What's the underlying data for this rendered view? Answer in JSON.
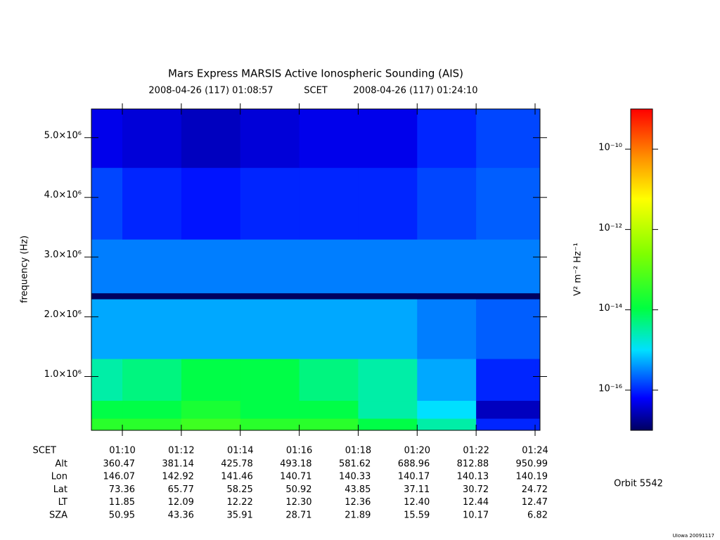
{
  "chart_data": {
    "type": "spectrogram",
    "title": "Mars Express MARSIS Active Ionospheric Sounding (AIS)",
    "xlabel": "SCET",
    "ylabel": "frequency (Hz)",
    "xlim": [
      "2008-04-26 (117) 01:08:57",
      "2008-04-26 (117) 01:24:10"
    ],
    "xticks": [
      "01:10",
      "01:12",
      "01:14",
      "01:16",
      "01:18",
      "01:20",
      "01:22",
      "01:24"
    ],
    "ylim": [
      100000,
      5480000
    ],
    "yticks": [
      {
        "value": 1000000,
        "label": "1.0×10⁶"
      },
      {
        "value": 2000000,
        "label": "2.0×10⁶"
      },
      {
        "value": 3000000,
        "label": "3.0×10⁶"
      },
      {
        "value": 4000000,
        "label": "4.0×10⁶"
      },
      {
        "value": 5000000,
        "label": "5.0×10⁶"
      }
    ],
    "zlabel": "V² m⁻² Hz⁻¹",
    "zscale": "log",
    "zlim": [
      1e-17,
      1e-09
    ],
    "zticks": [
      {
        "value": 1e-10,
        "label": "10⁻¹⁰"
      },
      {
        "value": 1e-12,
        "label": "10⁻¹²"
      },
      {
        "value": 1e-14,
        "label": "10⁻¹⁴"
      },
      {
        "value": 1e-16,
        "label": "10⁻¹⁶"
      }
    ],
    "time_edges": [
      "01:08:57",
      "01:10",
      "01:12",
      "01:14",
      "01:16",
      "01:18",
      "01:20",
      "01:22",
      "01:24",
      "01:24:10"
    ],
    "freq_edges": [
      100000,
      300000,
      600000,
      1300000,
      2300000,
      2400000,
      3300000,
      4500000,
      5480000
    ],
    "values": [
      [
        3e-14,
        3e-14,
        5e-14,
        3e-14,
        3e-14,
        1e-14,
        3e-15,
        1e-16,
        1e-16
      ],
      [
        1e-14,
        1e-14,
        2e-14,
        1e-14,
        1e-14,
        3e-15,
        1e-15,
        3e-17,
        3e-17
      ],
      [
        3e-15,
        5e-15,
        1e-14,
        1e-14,
        5e-15,
        3e-15,
        5e-16,
        1e-16,
        1e-16
      ],
      [
        5e-16,
        5e-16,
        5e-16,
        5e-16,
        5e-16,
        5e-16,
        3e-16,
        2e-16,
        2e-16
      ],
      [
        1e-17,
        1e-17,
        1e-17,
        1e-17,
        1e-17,
        1e-17,
        1e-17,
        1e-17,
        1e-17
      ],
      [
        3e-16,
        3e-16,
        3e-16,
        3e-16,
        3e-16,
        3e-16,
        3e-16,
        3e-16,
        3e-16
      ],
      [
        1.5e-16,
        1e-16,
        8e-17,
        1e-16,
        1e-16,
        1e-16,
        1.5e-16,
        2e-16,
        2e-16
      ],
      [
        5e-17,
        4e-17,
        3e-17,
        4e-17,
        5e-17,
        5e-17,
        1e-16,
        1.5e-16,
        1.5e-16
      ]
    ],
    "table": {
      "rows": [
        {
          "label": "Alt",
          "values": [
            "360.47",
            "381.14",
            "425.78",
            "493.18",
            "581.62",
            "688.96",
            "812.88",
            "950.99"
          ]
        },
        {
          "label": "Lon",
          "values": [
            "146.07",
            "142.92",
            "141.46",
            "140.71",
            "140.33",
            "140.17",
            "140.13",
            "140.19"
          ]
        },
        {
          "label": "Lat",
          "values": [
            "73.36",
            "65.77",
            "58.25",
            "50.92",
            "43.85",
            "37.11",
            "30.72",
            "24.72"
          ]
        },
        {
          "label": "LT",
          "values": [
            "11.85",
            "12.09",
            "12.22",
            "12.30",
            "12.36",
            "12.40",
            "12.44",
            "12.47"
          ]
        },
        {
          "label": "SZA",
          "values": [
            "50.95",
            "43.36",
            "35.91",
            "28.71",
            "21.89",
            "15.59",
            "10.17",
            "6.82"
          ]
        }
      ]
    },
    "orbit": "Orbit 5542",
    "footer": "UIowa 20091117"
  }
}
